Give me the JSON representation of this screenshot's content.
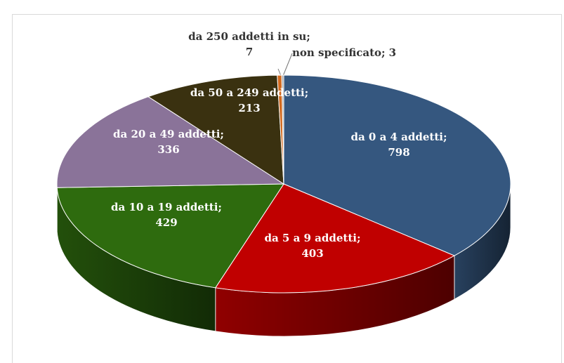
{
  "chart_data": {
    "type": "pie3d",
    "categories": [
      "da 0 a 4 addetti;",
      "da 5 a 9 addetti;",
      "da 10 a 19 addetti;",
      "da 20 a 49 addetti;",
      "da 50 a 249 addetti;",
      "da 250 addetti in su;",
      "non specificato;"
    ],
    "values": [
      798,
      403,
      429,
      336,
      213,
      7,
      3
    ],
    "colors": [
      "#35577f",
      "#c00000",
      "#2e6b0e",
      "#8a7399",
      "#3a3110",
      "#d2691e",
      "#a6a6a6"
    ]
  }
}
